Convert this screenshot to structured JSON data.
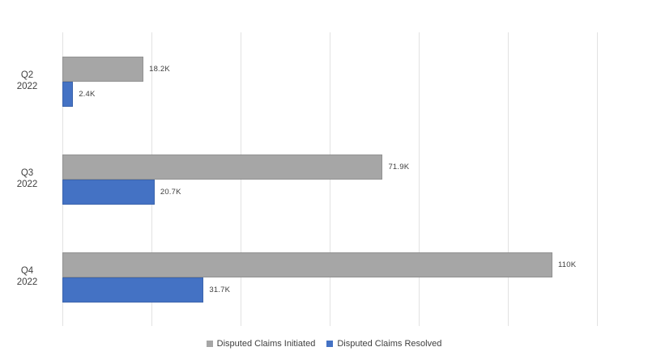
{
  "chart_data": {
    "type": "bar",
    "orientation": "horizontal",
    "title": "",
    "xlabel": "",
    "ylabel": "",
    "categories": [
      "Q2 2022",
      "Q3 2022",
      "Q4 2022"
    ],
    "series": [
      {
        "name": "Disputed Claims Initiated",
        "color": "#a6a6a6",
        "values": [
          18200,
          71900,
          110000
        ],
        "labels": [
          "18.2K",
          "71.9K",
          "110K"
        ]
      },
      {
        "name": "Disputed Claims Resolved",
        "color": "#4472c4",
        "values": [
          2400,
          20700,
          31700
        ],
        "labels": [
          "2.4K",
          "20.7K",
          "31.7K"
        ]
      }
    ],
    "xlim": [
      0,
      120000
    ],
    "grid": true,
    "grid_step": 20000,
    "gridline_color": "#e2e2e2",
    "label_color": "#404040",
    "legend_position": "bottom"
  }
}
